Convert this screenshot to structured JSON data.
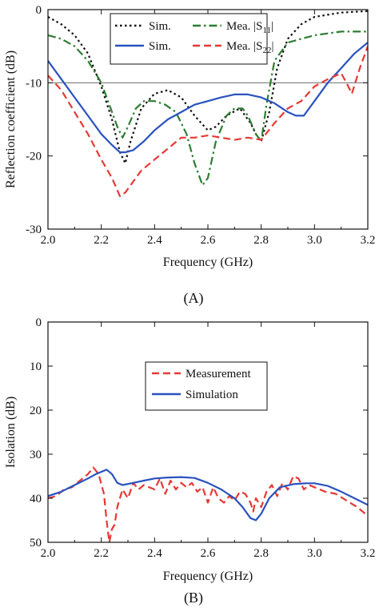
{
  "chart_data": [
    {
      "type": "line",
      "panel_label": "(A)",
      "xlabel": "Frequency (GHz)",
      "ylabel": "Reflection coefficient (dB)",
      "xlim": [
        2.0,
        3.2
      ],
      "ylim": [
        -30,
        0
      ],
      "x_ticks": [
        "2.0",
        "2.2",
        "2.4",
        "2.6",
        "2.8",
        "3.0",
        "3.2"
      ],
      "y_ticks": [
        "0",
        "-10",
        "-20",
        "-30"
      ],
      "grid": false,
      "reference_line": -10,
      "legend": {
        "placement": "top-center",
        "entries": [
          {
            "label": "Sim.",
            "series": "s11_sim"
          },
          {
            "label": "Mea. |S11|",
            "label_main": "Mea. |S",
            "label_sub": "11",
            "label_end": "|",
            "series": "s11_mea"
          },
          {
            "label": "Sim.",
            "series": "s22_sim"
          },
          {
            "label": "Mea. |S22|",
            "label_main": "Mea. |S",
            "label_sub": "22",
            "label_end": "|",
            "series": "s22_mea"
          }
        ]
      },
      "series": [
        {
          "id": "s11_sim",
          "color": "#111111",
          "dash": "dot",
          "x": [
            2.0,
            2.05,
            2.1,
            2.15,
            2.2,
            2.24,
            2.27,
            2.29,
            2.31,
            2.35,
            2.4,
            2.45,
            2.5,
            2.55,
            2.6,
            2.63,
            2.67,
            2.72,
            2.76,
            2.78,
            2.8,
            2.83,
            2.86,
            2.9,
            2.95,
            3.0,
            3.1,
            3.2
          ],
          "y": [
            -1,
            -2,
            -3.5,
            -6,
            -10.5,
            -15,
            -19.5,
            -21,
            -18,
            -13.5,
            -11.5,
            -11,
            -12,
            -14.5,
            -16.5,
            -16,
            -14.5,
            -13.5,
            -15.5,
            -17,
            -18,
            -14,
            -8,
            -4,
            -2,
            -1,
            -0.4,
            -0.2
          ]
        },
        {
          "id": "s11_mea",
          "color": "#2e7d32",
          "dash": "dashdot",
          "x": [
            2.0,
            2.05,
            2.1,
            2.15,
            2.2,
            2.23,
            2.26,
            2.28,
            2.3,
            2.33,
            2.36,
            2.4,
            2.44,
            2.48,
            2.52,
            2.55,
            2.58,
            2.6,
            2.63,
            2.67,
            2.7,
            2.73,
            2.75,
            2.78,
            2.8,
            2.82,
            2.85,
            2.9,
            3.0,
            3.1,
            3.2
          ],
          "y": [
            -3.5,
            -4,
            -5,
            -7,
            -10,
            -13,
            -16,
            -17.5,
            -16,
            -13.5,
            -12.5,
            -12.5,
            -13,
            -14,
            -17,
            -21,
            -24,
            -23,
            -18,
            -14.5,
            -13.5,
            -13.5,
            -14.5,
            -17,
            -18,
            -13,
            -7,
            -4.5,
            -3.5,
            -3,
            -3
          ]
        },
        {
          "id": "s22_sim",
          "color": "#2a52be",
          "dash": "solid",
          "x": [
            2.0,
            2.05,
            2.1,
            2.15,
            2.2,
            2.24,
            2.27,
            2.29,
            2.32,
            2.36,
            2.4,
            2.45,
            2.5,
            2.55,
            2.6,
            2.65,
            2.7,
            2.75,
            2.8,
            2.85,
            2.9,
            2.93,
            2.96,
            3.0,
            3.05,
            3.1,
            3.15,
            3.2
          ],
          "y": [
            -7,
            -9.5,
            -12,
            -14.5,
            -17,
            -18.5,
            -19.5,
            -19.5,
            -19.2,
            -18,
            -16.5,
            -15,
            -14,
            -13,
            -12.5,
            -12,
            -11.6,
            -11.6,
            -12,
            -12.8,
            -14,
            -14.5,
            -14.5,
            -12.5,
            -10,
            -8,
            -6,
            -4.5
          ]
        },
        {
          "id": "s22_mea",
          "color": "#e53935",
          "dash": "dash",
          "x": [
            2.0,
            2.05,
            2.1,
            2.15,
            2.2,
            2.24,
            2.27,
            2.29,
            2.31,
            2.35,
            2.4,
            2.45,
            2.5,
            2.55,
            2.6,
            2.65,
            2.7,
            2.75,
            2.8,
            2.85,
            2.9,
            2.95,
            3.0,
            3.05,
            3.1,
            3.12,
            3.14,
            3.17,
            3.2
          ],
          "y": [
            -9,
            -11,
            -14,
            -17,
            -20.5,
            -23,
            -25.5,
            -25,
            -24,
            -22,
            -20.5,
            -19,
            -17.5,
            -17.5,
            -17.2,
            -17.5,
            -17.8,
            -17.5,
            -17.8,
            -15.5,
            -13.5,
            -12.5,
            -10.5,
            -9.5,
            -8.7,
            -10,
            -11.5,
            -8,
            -5
          ]
        }
      ]
    },
    {
      "type": "line",
      "panel_label": "(B)",
      "xlabel": "Frequency (GHz)",
      "ylabel": "Isolation (dB)",
      "xlim": [
        2.0,
        3.2
      ],
      "ylim": [
        0,
        50
      ],
      "y_inverted": true,
      "x_ticks": [
        "2.0",
        "2.2",
        "2.4",
        "2.6",
        "2.8",
        "3.0",
        "3.2"
      ],
      "y_ticks": [
        "0",
        "10",
        "20",
        "30",
        "40",
        "50"
      ],
      "grid": false,
      "legend": {
        "placement": "center",
        "entries": [
          {
            "label": "Measurement",
            "series": "iso_mea"
          },
          {
            "label": "Simulation",
            "series": "iso_sim"
          }
        ]
      },
      "series": [
        {
          "id": "iso_mea",
          "color": "#e53935",
          "dash": "dash",
          "x": [
            2.0,
            2.03,
            2.06,
            2.09,
            2.12,
            2.15,
            2.17,
            2.19,
            2.21,
            2.22,
            2.23,
            2.24,
            2.25,
            2.26,
            2.28,
            2.3,
            2.32,
            2.34,
            2.36,
            2.38,
            2.4,
            2.42,
            2.44,
            2.46,
            2.48,
            2.5,
            2.52,
            2.54,
            2.56,
            2.58,
            2.6,
            2.62,
            2.64,
            2.66,
            2.68,
            2.7,
            2.72,
            2.74,
            2.76,
            2.77,
            2.78,
            2.8,
            2.82,
            2.84,
            2.86,
            2.88,
            2.9,
            2.92,
            2.94,
            2.96,
            2.98,
            3.0,
            3.04,
            3.08,
            3.12,
            3.16,
            3.2
          ],
          "y": [
            40,
            39.5,
            38,
            37.5,
            36,
            34.5,
            33,
            34.5,
            39,
            45,
            50,
            47,
            46,
            42,
            38,
            40,
            36.5,
            38,
            37,
            37.5,
            38,
            35.5,
            39,
            36,
            38,
            36.5,
            37.5,
            36.5,
            38.5,
            37.5,
            41,
            37.5,
            40,
            41,
            39.5,
            40.5,
            38.5,
            39,
            41,
            43,
            40,
            42,
            38.5,
            37,
            39.5,
            36.5,
            38,
            35,
            35.5,
            38,
            37,
            37.5,
            38.5,
            39,
            40.5,
            42,
            44
          ]
        },
        {
          "id": "iso_sim",
          "color": "#2a52be",
          "dash": "solid",
          "x": [
            2.0,
            2.05,
            2.1,
            2.15,
            2.18,
            2.2,
            2.22,
            2.24,
            2.26,
            2.28,
            2.32,
            2.36,
            2.4,
            2.45,
            2.5,
            2.55,
            2.6,
            2.65,
            2.7,
            2.73,
            2.76,
            2.78,
            2.8,
            2.83,
            2.87,
            2.92,
            2.97,
            3.0,
            3.05,
            3.1,
            3.15,
            3.2
          ],
          "y": [
            39.5,
            38.5,
            37,
            35.5,
            34.5,
            34,
            33.5,
            34.5,
            36.5,
            37,
            36.5,
            36,
            35.5,
            35.3,
            35.2,
            35.4,
            36.5,
            38,
            40,
            42,
            44.5,
            45,
            43.5,
            40,
            37.5,
            36.8,
            36.6,
            36.6,
            37.2,
            38.5,
            40,
            41.5
          ]
        }
      ]
    }
  ]
}
